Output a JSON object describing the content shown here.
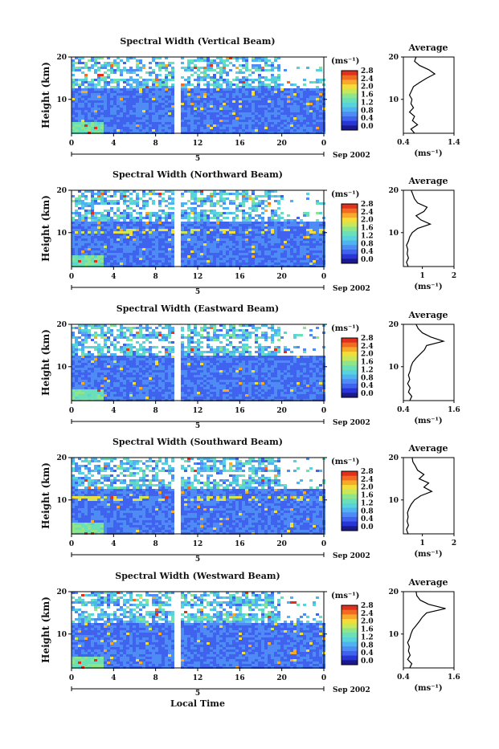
{
  "chart_data": [
    {
      "type": "heatmap",
      "title": "Spectral Width (Vertical Beam)",
      "ylabel": "Height (km)",
      "xlabel": "",
      "x_ticks": [
        "0",
        "4",
        "8",
        "12",
        "16",
        "20",
        "0"
      ],
      "y_ticks": [
        "20",
        "10"
      ],
      "ylim": [
        2,
        20
      ],
      "xlim": [
        0,
        24
      ],
      "date_label": "5",
      "month_label": "Sep 2002",
      "colorbar": {
        "unit": "(ms⁻¹)",
        "ticks": [
          "2.8",
          "2.4",
          "2.0",
          "1.6",
          "1.2",
          "0.8",
          "0.4",
          "0.0"
        ]
      },
      "average": {
        "title": "Average",
        "xlabel": "(ms⁻¹)",
        "x_ticks": [
          "0.4",
          "1.4"
        ],
        "xlim": [
          0.4,
          1.4
        ],
        "y_ticks": [
          "20",
          "10"
        ],
        "ylim": [
          2,
          20
        ],
        "profile": [
          [
            2,
            0.62
          ],
          [
            3,
            0.55
          ],
          [
            4,
            0.68
          ],
          [
            5,
            0.58
          ],
          [
            6,
            0.62
          ],
          [
            7,
            0.52
          ],
          [
            8,
            0.6
          ],
          [
            9,
            0.55
          ],
          [
            10,
            0.57
          ],
          [
            11,
            0.52
          ],
          [
            12,
            0.56
          ],
          [
            13,
            0.6
          ],
          [
            14,
            0.72
          ],
          [
            15,
            0.86
          ],
          [
            16,
            1.02
          ],
          [
            17,
            0.9
          ],
          [
            18,
            0.72
          ],
          [
            19,
            0.62
          ],
          [
            20,
            0.65
          ]
        ]
      }
    },
    {
      "type": "heatmap",
      "title": "Spectral Width (Northward Beam)",
      "ylabel": "Height (km)",
      "xlabel": "",
      "x_ticks": [
        "0",
        "4",
        "8",
        "12",
        "16",
        "20",
        "0"
      ],
      "y_ticks": [
        "20",
        "10"
      ],
      "ylim": [
        2,
        20
      ],
      "xlim": [
        0,
        24
      ],
      "date_label": "5",
      "month_label": "Sep 2002",
      "colorbar": {
        "unit": "(ms⁻¹)",
        "ticks": [
          "2.8",
          "2.4",
          "2.0",
          "1.6",
          "1.2",
          "0.8",
          "0.4",
          "0.0"
        ]
      },
      "average": {
        "title": "Average",
        "xlabel": "(ms⁻¹)",
        "x_ticks": [
          "1",
          "2"
        ],
        "xlim": [
          0.4,
          2.0
        ],
        "y_ticks": [
          "20",
          "10"
        ],
        "ylim": [
          2,
          20
        ],
        "profile": [
          [
            2,
            0.55
          ],
          [
            3,
            0.5
          ],
          [
            4,
            0.56
          ],
          [
            5,
            0.52
          ],
          [
            6,
            0.54
          ],
          [
            7,
            0.5
          ],
          [
            8,
            0.56
          ],
          [
            9,
            0.6
          ],
          [
            10,
            0.68
          ],
          [
            11,
            0.85
          ],
          [
            12,
            1.25
          ],
          [
            13,
            0.95
          ],
          [
            14,
            0.8
          ],
          [
            15,
            1.05
          ],
          [
            16,
            1.15
          ],
          [
            17,
            0.85
          ],
          [
            18,
            0.75
          ],
          [
            19,
            0.7
          ],
          [
            20,
            0.65
          ]
        ]
      }
    },
    {
      "type": "heatmap",
      "title": "Spectral Width (Eastward Beam)",
      "ylabel": "Height (km)",
      "xlabel": "",
      "x_ticks": [
        "0",
        "4",
        "8",
        "12",
        "16",
        "20",
        "0"
      ],
      "y_ticks": [
        "20",
        "10"
      ],
      "ylim": [
        2,
        20
      ],
      "xlim": [
        0,
        24
      ],
      "date_label": "5",
      "month_label": "Sep 2002",
      "colorbar": {
        "unit": "(ms⁻¹)",
        "ticks": [
          "2.8",
          "2.4",
          "2.0",
          "1.6",
          "1.2",
          "0.8",
          "0.4",
          "0.0"
        ]
      },
      "average": {
        "title": "Average",
        "xlabel": "(ms⁻¹)",
        "x_ticks": [
          "0.4",
          "1.6"
        ],
        "xlim": [
          0.4,
          1.6
        ],
        "y_ticks": [
          "20",
          "10"
        ],
        "ylim": [
          2,
          20
        ],
        "profile": [
          [
            2,
            0.55
          ],
          [
            3,
            0.6
          ],
          [
            4,
            0.52
          ],
          [
            5,
            0.56
          ],
          [
            6,
            0.5
          ],
          [
            7,
            0.55
          ],
          [
            8,
            0.52
          ],
          [
            9,
            0.56
          ],
          [
            10,
            0.58
          ],
          [
            11,
            0.62
          ],
          [
            12,
            0.7
          ],
          [
            13,
            0.8
          ],
          [
            14,
            0.9
          ],
          [
            15,
            0.95
          ],
          [
            16,
            1.35
          ],
          [
            17,
            1.05
          ],
          [
            18,
            0.85
          ],
          [
            19,
            0.75
          ],
          [
            20,
            0.7
          ]
        ]
      }
    },
    {
      "type": "heatmap",
      "title": "Spectral Width (Southward Beam)",
      "ylabel": "Height (km)",
      "xlabel": "",
      "x_ticks": [
        "0",
        "4",
        "8",
        "12",
        "16",
        "20",
        "0"
      ],
      "y_ticks": [
        "20",
        "10"
      ],
      "ylim": [
        2,
        20
      ],
      "xlim": [
        0,
        24
      ],
      "date_label": "5",
      "month_label": "Sep 2002",
      "colorbar": {
        "unit": "(ms⁻¹)",
        "ticks": [
          "2.8",
          "2.4",
          "2.0",
          "1.6",
          "1.2",
          "0.8",
          "0.4",
          "0.0"
        ]
      },
      "average": {
        "title": "Average",
        "xlabel": "(ms⁻¹)",
        "x_ticks": [
          "1",
          "2"
        ],
        "xlim": [
          0.4,
          2.0
        ],
        "y_ticks": [
          "20",
          "10"
        ],
        "ylim": [
          2,
          20
        ],
        "profile": [
          [
            2,
            0.55
          ],
          [
            3,
            0.5
          ],
          [
            4,
            0.56
          ],
          [
            5,
            0.52
          ],
          [
            6,
            0.55
          ],
          [
            7,
            0.53
          ],
          [
            8,
            0.58
          ],
          [
            9,
            0.65
          ],
          [
            10,
            0.75
          ],
          [
            11,
            0.95
          ],
          [
            12,
            1.3
          ],
          [
            13,
            1.05
          ],
          [
            14,
            1.2
          ],
          [
            15,
            0.9
          ],
          [
            16,
            1.05
          ],
          [
            17,
            0.85
          ],
          [
            18,
            0.78
          ],
          [
            19,
            0.7
          ],
          [
            20,
            0.68
          ]
        ]
      }
    },
    {
      "type": "heatmap",
      "title": "Spectral Width (Westward Beam)",
      "ylabel": "Height (km)",
      "xlabel": "Local Time",
      "x_ticks": [
        "0",
        "4",
        "8",
        "12",
        "16",
        "20",
        "0"
      ],
      "y_ticks": [
        "20",
        "10"
      ],
      "ylim": [
        2,
        20
      ],
      "xlim": [
        0,
        24
      ],
      "date_label": "5",
      "month_label": "Sep 2002",
      "colorbar": {
        "unit": "(ms⁻¹)",
        "ticks": [
          "2.8",
          "2.4",
          "2.0",
          "1.6",
          "1.2",
          "0.8",
          "0.4",
          "0.0"
        ]
      },
      "average": {
        "title": "Average",
        "xlabel": "(ms⁻¹)",
        "x_ticks": [
          "0.4",
          "1.6"
        ],
        "xlim": [
          0.4,
          1.6
        ],
        "y_ticks": [
          "20",
          "10"
        ],
        "ylim": [
          2,
          20
        ],
        "profile": [
          [
            2,
            0.55
          ],
          [
            3,
            0.6
          ],
          [
            4,
            0.5
          ],
          [
            5,
            0.56
          ],
          [
            6,
            0.52
          ],
          [
            7,
            0.54
          ],
          [
            8,
            0.5
          ],
          [
            9,
            0.55
          ],
          [
            10,
            0.58
          ],
          [
            11,
            0.62
          ],
          [
            12,
            0.7
          ],
          [
            13,
            0.78
          ],
          [
            14,
            0.85
          ],
          [
            15,
            0.95
          ],
          [
            16,
            1.4
          ],
          [
            17,
            1.0
          ],
          [
            18,
            0.8
          ],
          [
            19,
            0.72
          ],
          [
            20,
            0.7
          ]
        ]
      }
    }
  ]
}
